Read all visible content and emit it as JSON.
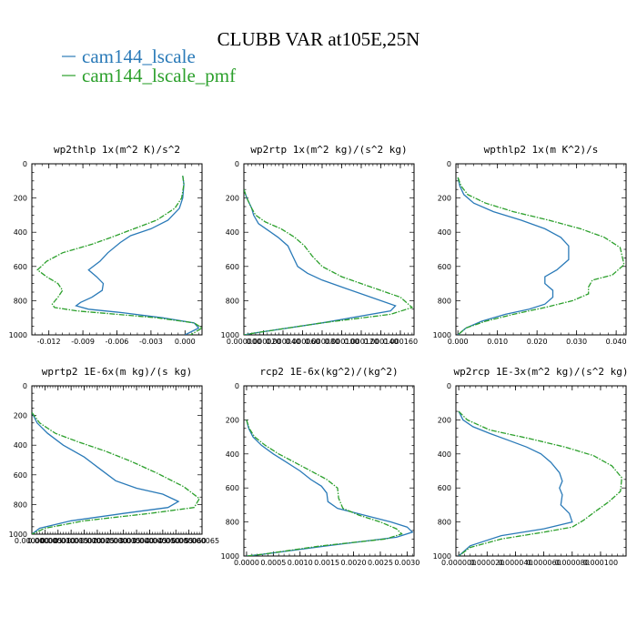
{
  "title": "CLUBB VAR at105E,25N",
  "legend": [
    {
      "label": "cam144_lscale",
      "color": "#2a7ab8"
    },
    {
      "label": "cam144_lscale_pmf",
      "color": "#2ca02c"
    }
  ],
  "chart_data": [
    {
      "type": "line",
      "title": "wp2thlp  1x(m^2 K)/s^2",
      "xlim": [
        -0.0135,
        0.0015
      ],
      "xticks": [
        -0.012,
        -0.009,
        -0.006,
        -0.003,
        0.0
      ],
      "xticklabels": [
        "-0.012",
        "-0.009",
        "-0.006",
        "-0.003",
        "0.000"
      ],
      "ylim": [
        0,
        1000
      ],
      "yticks": [
        0,
        200,
        400,
        600,
        800,
        1000
      ],
      "series": [
        {
          "name": "cam144_lscale",
          "x": [
            -0.0002,
            -0.0001,
            -0.0002,
            -0.0005,
            -0.0015,
            -0.003,
            -0.0048,
            -0.0057,
            -0.0068,
            -0.0075,
            -0.0085,
            -0.0078,
            -0.0072,
            -0.0073,
            -0.0082,
            -0.0092,
            -0.0096,
            -0.0085,
            -0.0055,
            -0.002,
            0.0008,
            0.0012,
            0.0
          ],
          "y": [
            70,
            120,
            200,
            260,
            330,
            380,
            420,
            460,
            520,
            570,
            620,
            660,
            700,
            740,
            780,
            810,
            830,
            850,
            870,
            900,
            930,
            960,
            1000
          ]
        },
        {
          "name": "cam144_lscale_pmf",
          "x": [
            -0.0002,
            -0.0001,
            -0.0003,
            -0.0009,
            -0.0025,
            -0.0045,
            -0.0065,
            -0.0082,
            -0.0108,
            -0.0122,
            -0.013,
            -0.0122,
            -0.0112,
            -0.0108,
            -0.0112,
            -0.0117,
            -0.0115,
            -0.0095,
            -0.006,
            -0.0025,
            0.0008,
            0.0015,
            0.0005
          ],
          "y": [
            70,
            120,
            200,
            260,
            330,
            380,
            430,
            470,
            520,
            570,
            620,
            660,
            700,
            740,
            780,
            820,
            840,
            860,
            880,
            900,
            930,
            960,
            1000
          ]
        }
      ]
    },
    {
      "type": "line",
      "title": "wp2rtp  1x(m^2 kg)/(s^2 kg)",
      "xlim": [
        0,
        0.000174
      ],
      "xticks": [
        0.0,
        2e-05,
        4e-05,
        6e-05,
        8e-05,
        0.0001,
        0.00012,
        0.00014,
        0.00016
      ],
      "xticklabels": [
        "0.000000",
        "0.000020",
        "0.000040",
        "0.000060",
        "0.000080",
        "0.000100",
        "0.000120",
        "0.000140",
        "0.000160"
      ],
      "ylim": [
        0,
        1000
      ],
      "yticks": [
        0,
        200,
        400,
        600,
        800,
        1000
      ],
      "series": [
        {
          "name": "cam144_lscale",
          "x": [
            0.0,
            3e-06,
            8e-06,
            1e-05,
            1.5e-05,
            2.5e-05,
            3.5e-05,
            4.5e-05,
            5e-05,
            5.5e-05,
            6.5e-05,
            8e-05,
            0.0001,
            0.00013,
            0.000155,
            0.00015,
            8e-05,
            1e-05,
            0.0
          ],
          "y": [
            150,
            200,
            260,
            300,
            350,
            390,
            430,
            480,
            540,
            600,
            640,
            680,
            720,
            780,
            830,
            860,
            930,
            990,
            1000
          ]
        },
        {
          "name": "cam144_lscale_pmf",
          "x": [
            0.0,
            3e-06,
            8e-06,
            1.2e-05,
            2.2e-05,
            3.8e-05,
            5.2e-05,
            6.2e-05,
            7e-05,
            8e-05,
            0.0001,
            0.00013,
            0.00016,
            0.000172,
            0.00015,
            8e-05,
            1e-05,
            0.0
          ],
          "y": [
            150,
            200,
            260,
            300,
            340,
            380,
            430,
            480,
            540,
            600,
            660,
            720,
            780,
            840,
            880,
            930,
            990,
            1000
          ]
        }
      ]
    },
    {
      "type": "line",
      "title": "wpthlp2  1x(m K^2)/s",
      "xlim": [
        -0.0005,
        0.0425
      ],
      "xticks": [
        0.0,
        0.01,
        0.02,
        0.03,
        0.04
      ],
      "xticklabels": [
        "0.000",
        "0.010",
        "0.020",
        "0.030",
        "0.040"
      ],
      "ylim": [
        0,
        1000
      ],
      "yticks": [
        0,
        200,
        400,
        600,
        800,
        1000
      ],
      "series": [
        {
          "name": "cam144_lscale",
          "x": [
            0.0,
            0.0005,
            0.0015,
            0.004,
            0.009,
            0.016,
            0.022,
            0.026,
            0.028,
            0.028,
            0.025,
            0.022,
            0.022,
            0.024,
            0.024,
            0.022,
            0.018,
            0.012,
            0.006,
            0.002,
            0.0
          ],
          "y": [
            80,
            130,
            180,
            230,
            280,
            330,
            380,
            430,
            480,
            560,
            620,
            660,
            700,
            740,
            780,
            820,
            850,
            880,
            920,
            960,
            1000
          ]
        },
        {
          "name": "cam144_lscale_pmf",
          "x": [
            0.0,
            0.0008,
            0.0025,
            0.007,
            0.014,
            0.023,
            0.031,
            0.037,
            0.041,
            0.042,
            0.039,
            0.034,
            0.033,
            0.033,
            0.029,
            0.022,
            0.014,
            0.007,
            0.002,
            0.0
          ],
          "y": [
            80,
            130,
            180,
            230,
            280,
            330,
            380,
            430,
            490,
            590,
            650,
            680,
            720,
            760,
            800,
            840,
            880,
            920,
            960,
            1000
          ]
        }
      ]
    },
    {
      "type": "line",
      "title": "wprtp2  1E-6x(m kg)/(s kg)",
      "xlim": [
        0,
        6.5e-05
      ],
      "xticks": [
        0.0,
        5e-06,
        1e-05,
        1.5e-05,
        2e-05,
        2.5e-05,
        3e-05,
        3.5e-05,
        4e-05,
        4.5e-05,
        5e-05,
        5.5e-05,
        6e-05,
        6.5e-05
      ],
      "xticklabels": [
        "0.000000",
        "0.000005",
        "0.000010",
        "0.000015",
        "0.000020",
        "0.000025",
        "0.000030",
        "0.000035",
        "0.000040",
        "0.000045",
        "0.000050",
        "0.000055",
        "0.000060",
        "0.000065"
      ],
      "ylim": [
        0,
        1000
      ],
      "yticks": [
        0,
        200,
        400,
        600,
        800,
        1000
      ],
      "series": [
        {
          "name": "cam144_lscale",
          "x": [
            0.0,
            2e-06,
            6e-06,
            1.2e-05,
            2e-05,
            2.6e-05,
            3.2e-05,
            4e-05,
            5e-05,
            5.6e-05,
            5.2e-05,
            3.5e-05,
            1.5e-05,
            3e-06,
            0.0
          ],
          "y": [
            180,
            250,
            320,
            400,
            480,
            560,
            640,
            690,
            730,
            780,
            820,
            860,
            910,
            960,
            1000
          ]
        },
        {
          "name": "cam144_lscale_pmf",
          "x": [
            0.0,
            3e-06,
            9e-06,
            1.8e-05,
            2.8e-05,
            3.8e-05,
            4.8e-05,
            5.8e-05,
            6.4e-05,
            6.2e-05,
            4.5e-05,
            2e-05,
            5e-06,
            0.0
          ],
          "y": [
            180,
            250,
            320,
            380,
            440,
            510,
            590,
            680,
            760,
            820,
            860,
            910,
            960,
            1000
          ]
        }
      ]
    },
    {
      "type": "line",
      "title": "rcp2  1E-6x(kg^2)/(kg^2)",
      "xlim": [
        -5e-05,
        0.00313
      ],
      "xticks": [
        0.0,
        0.0005,
        0.001,
        0.0015,
        0.002,
        0.0025,
        0.003
      ],
      "xticklabels": [
        "0.0000",
        "0.0005",
        "0.0010",
        "0.0015",
        "0.0020",
        "0.0025",
        "0.0030"
      ],
      "ylim": [
        0,
        1000
      ],
      "yticks": [
        0,
        200,
        400,
        600,
        800,
        1000
      ],
      "series": [
        {
          "name": "cam144_lscale",
          "x": [
            0.0,
            4e-05,
            0.00012,
            0.00028,
            0.0005,
            0.00075,
            0.001,
            0.0012,
            0.0014,
            0.0015,
            0.00152,
            0.0017,
            0.0022,
            0.0027,
            0.003,
            0.0031,
            0.0028,
            0.0015,
            0.0003,
            0.0
          ],
          "y": [
            200,
            250,
            300,
            350,
            400,
            450,
            500,
            550,
            590,
            630,
            680,
            720,
            760,
            800,
            830,
            860,
            890,
            940,
            990,
            1000
          ]
        },
        {
          "name": "cam144_lscale_pmf",
          "x": [
            0.0,
            5e-05,
            0.00015,
            0.00035,
            0.0006,
            0.0009,
            0.0012,
            0.0015,
            0.0017,
            0.00172,
            0.0018,
            0.0021,
            0.0025,
            0.0028,
            0.0029,
            0.0026,
            0.0014,
            0.0003,
            0.0
          ],
          "y": [
            200,
            250,
            300,
            350,
            400,
            450,
            500,
            550,
            600,
            660,
            720,
            760,
            800,
            840,
            870,
            900,
            940,
            990,
            1000
          ]
        }
      ]
    },
    {
      "type": "line",
      "title": "wp2rcp  1E-3x(m^2 kg)/(s^2 kg)",
      "xlim": [
        -2e-06,
        0.000118
      ],
      "xticks": [
        0.0,
        2e-05,
        4e-05,
        6e-05,
        8e-05,
        0.0001
      ],
      "xticklabels": [
        "0.000000",
        "0.000020",
        "0.000040",
        "0.000060",
        "0.000080",
        "0.000100"
      ],
      "ylim": [
        0,
        1000
      ],
      "yticks": [
        0,
        200,
        400,
        600,
        800,
        1000
      ],
      "series": [
        {
          "name": "cam144_lscale",
          "x": [
            0.0,
            3e-06,
            1e-05,
            2.2e-05,
            3.5e-05,
            4.8e-05,
            5.8e-05,
            6.5e-05,
            7.1e-05,
            7.3e-05,
            7.1e-05,
            7.3e-05,
            7.2e-05,
            7.8e-05,
            8e-05,
            6e-05,
            3e-05,
            8e-06,
            0.0
          ],
          "y": [
            150,
            200,
            240,
            280,
            320,
            360,
            400,
            450,
            510,
            560,
            600,
            640,
            700,
            750,
            800,
            840,
            880,
            940,
            1000
          ]
        },
        {
          "name": "cam144_lscale_pmf",
          "x": [
            0.0,
            6e-06,
            2.2e-05,
            5e-05,
            7.5e-05,
            9.5e-05,
            0.000108,
            0.000115,
            0.000114,
            0.000106,
            9.6e-05,
            8.8e-05,
            8e-05,
            6e-05,
            3e-05,
            8e-06,
            0.0
          ],
          "y": [
            150,
            200,
            260,
            310,
            360,
            410,
            470,
            540,
            620,
            680,
            740,
            790,
            830,
            860,
            900,
            950,
            1000
          ]
        }
      ]
    }
  ]
}
